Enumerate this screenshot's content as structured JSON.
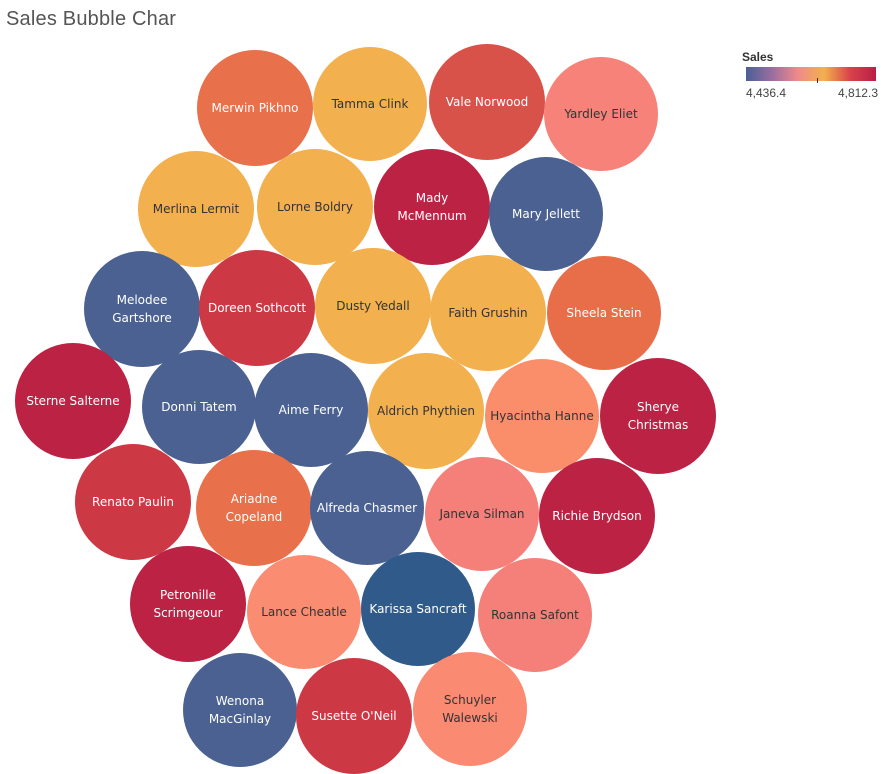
{
  "title": "Sales Bubble Char",
  "legend": {
    "title": "Sales",
    "min_label": "4,436.4",
    "max_label": "4,812.3",
    "colors": [
      "#4a5f96",
      "#9a6ea0",
      "#f08a8a",
      "#f2b04e",
      "#d8434a",
      "#b81f45"
    ]
  },
  "chart_data": {
    "type": "bubble",
    "title": "Sales Bubble Char",
    "color_measure": "Sales",
    "color_range": [
      4436.4,
      4812.3
    ],
    "bubbles": [
      {
        "label": [
          "Merwin Pikhno"
        ],
        "color": "#e8704a",
        "text_color": "#ffffff"
      },
      {
        "label": [
          "Tamma Clink"
        ],
        "color": "#f2b04e",
        "text_color": "#333333"
      },
      {
        "label": [
          "Vale Norwood"
        ],
        "color": "#d8524a",
        "text_color": "#ffffff"
      },
      {
        "label": [
          "Yardley Eliet"
        ],
        "color": "#f7827a",
        "text_color": "#333333"
      },
      {
        "label": [
          "Merlina Lermit"
        ],
        "color": "#f2b04e",
        "text_color": "#333333"
      },
      {
        "label": [
          "Lorne Boldry"
        ],
        "color": "#f2b04e",
        "text_color": "#333333"
      },
      {
        "label": [
          "Mady",
          "McMennum"
        ],
        "color": "#bb2244",
        "text_color": "#ffffff"
      },
      {
        "label": [
          "Mary Jellett"
        ],
        "color": "#4a6191",
        "text_color": "#ffffff"
      },
      {
        "label": [
          "Melodee",
          "Gartshore"
        ],
        "color": "#4a6191",
        "text_color": "#ffffff"
      },
      {
        "label": [
          "Doreen Sothcott"
        ],
        "color": "#cc3844",
        "text_color": "#ffffff"
      },
      {
        "label": [
          "Dusty Yedall"
        ],
        "color": "#f2b04e",
        "text_color": "#333333"
      },
      {
        "label": [
          "Faith Grushin"
        ],
        "color": "#f2b04e",
        "text_color": "#333333"
      },
      {
        "label": [
          "Sheela Stein"
        ],
        "color": "#e86e4a",
        "text_color": "#ffffff"
      },
      {
        "label": [
          "Sterne Salterne"
        ],
        "color": "#bb2244",
        "text_color": "#ffffff"
      },
      {
        "label": [
          "Donni Tatem"
        ],
        "color": "#4a6191",
        "text_color": "#ffffff"
      },
      {
        "label": [
          "Aime Ferry"
        ],
        "color": "#4a6191",
        "text_color": "#ffffff"
      },
      {
        "label": [
          "Aldrich Phythien"
        ],
        "color": "#f2b04e",
        "text_color": "#333333"
      },
      {
        "label": [
          "Hyacintha Hanne"
        ],
        "color": "#fa8e6a",
        "text_color": "#333333"
      },
      {
        "label": [
          "Sherye",
          "Christmas"
        ],
        "color": "#bb2244",
        "text_color": "#ffffff"
      },
      {
        "label": [
          "Renato Paulin"
        ],
        "color": "#cc3844",
        "text_color": "#ffffff"
      },
      {
        "label": [
          "Ariadne",
          "Copeland"
        ],
        "color": "#e8704a",
        "text_color": "#ffffff"
      },
      {
        "label": [
          "Alfreda Chasmer"
        ],
        "color": "#4a6191",
        "text_color": "#ffffff"
      },
      {
        "label": [
          "Janeva Silman"
        ],
        "color": "#f5807a",
        "text_color": "#333333"
      },
      {
        "label": [
          "Richie Brydson"
        ],
        "color": "#bb2244",
        "text_color": "#ffffff"
      },
      {
        "label": [
          "Petronille",
          "Scrimgeour"
        ],
        "color": "#bb2244",
        "text_color": "#ffffff"
      },
      {
        "label": [
          "Lance Cheatle"
        ],
        "color": "#fa8c72",
        "text_color": "#333333"
      },
      {
        "label": [
          "Karissa Sancraft"
        ],
        "color": "#2f5a8a",
        "text_color": "#ffffff"
      },
      {
        "label": [
          "Roanna Safont"
        ],
        "color": "#f5807a",
        "text_color": "#333333"
      },
      {
        "label": [
          "Wenona",
          "MacGinlay"
        ],
        "color": "#4a6191",
        "text_color": "#ffffff"
      },
      {
        "label": [
          "Susette O'Neil"
        ],
        "color": "#cc3844",
        "text_color": "#ffffff"
      },
      {
        "label": [
          "Schuyler",
          "Walewski"
        ],
        "color": "#fa8a72",
        "text_color": "#333333"
      }
    ]
  }
}
